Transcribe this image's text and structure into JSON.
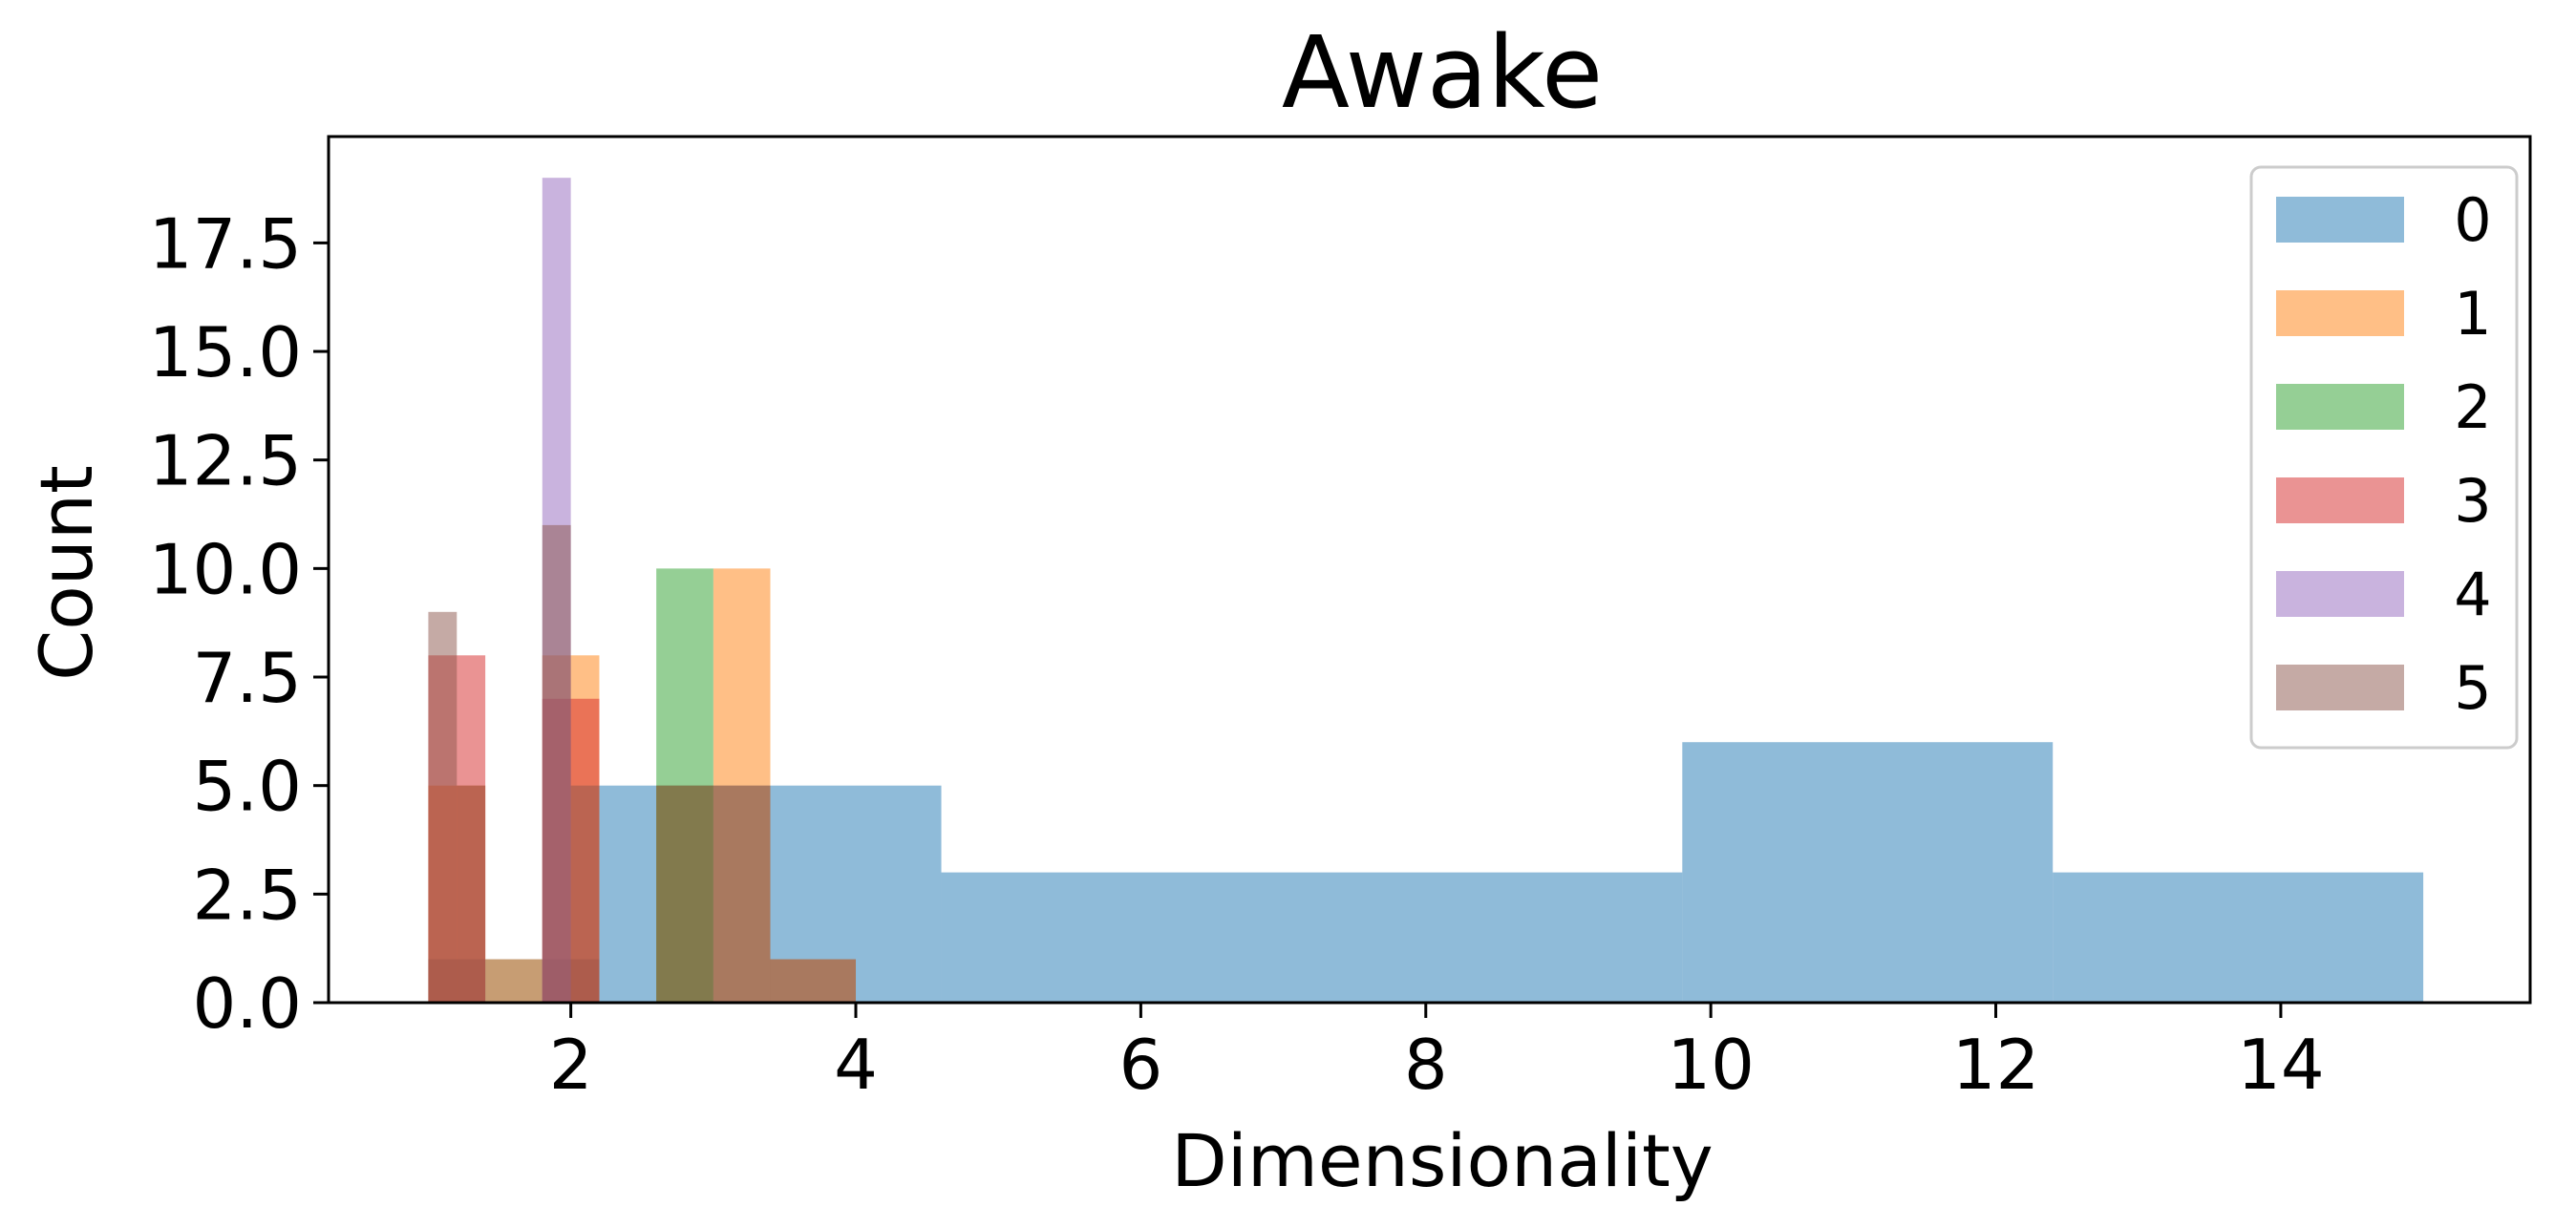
{
  "chart_data": {
    "type": "bar",
    "subtype": "histogram-overlay",
    "title": "Awake",
    "xlabel": "Dimensionality",
    "ylabel": "Count",
    "xlim": [
      0.3,
      15.75
    ],
    "ylim": [
      0,
      19.95
    ],
    "xticks": [
      2,
      4,
      6,
      8,
      10,
      12,
      14
    ],
    "yticks": [
      0.0,
      2.5,
      5.0,
      7.5,
      10.0,
      12.5,
      15.0,
      17.5
    ],
    "xtick_labels": [
      "2",
      "4",
      "6",
      "8",
      "10",
      "12",
      "14"
    ],
    "ytick_labels": [
      "0.0",
      "2.5",
      "5.0",
      "7.5",
      "10.0",
      "12.5",
      "15.0",
      "17.5"
    ],
    "legend_position": "top-right",
    "grid": false,
    "bar_opacity": 0.5,
    "series": [
      {
        "name": "0",
        "color": "#1f77b4",
        "bins": [
          [
            1.0,
            2.2,
            1
          ],
          [
            2.2,
            4.6,
            5
          ],
          [
            4.6,
            9.8,
            3
          ],
          [
            9.8,
            12.4,
            6
          ],
          [
            12.4,
            15.0,
            3
          ]
        ]
      },
      {
        "name": "1",
        "color": "#ff7f0e",
        "bins": [
          [
            1.0,
            1.4,
            5
          ],
          [
            1.4,
            1.8,
            1
          ],
          [
            1.8,
            2.2,
            8
          ],
          [
            2.6,
            3.0,
            5
          ],
          [
            3.0,
            3.4,
            10
          ],
          [
            3.4,
            4.0,
            1
          ]
        ]
      },
      {
        "name": "2",
        "color": "#2ca02c",
        "bins": [
          [
            2.6,
            3.0,
            10
          ]
        ]
      },
      {
        "name": "3",
        "color": "#d62728",
        "bins": [
          [
            1.0,
            1.4,
            8
          ],
          [
            1.8,
            2.2,
            7
          ]
        ]
      },
      {
        "name": "4",
        "color": "#9467bd",
        "bins": [
          [
            1.8,
            2.0,
            19
          ]
        ]
      },
      {
        "name": "5",
        "color": "#8c564b",
        "bins": [
          [
            1.0,
            1.2,
            9
          ],
          [
            1.2,
            1.4,
            5
          ],
          [
            1.8,
            2.0,
            11
          ],
          [
            2.0,
            2.2,
            5
          ],
          [
            2.6,
            3.0,
            5
          ],
          [
            3.0,
            3.4,
            5
          ],
          [
            3.4,
            4.0,
            1
          ]
        ]
      }
    ]
  }
}
